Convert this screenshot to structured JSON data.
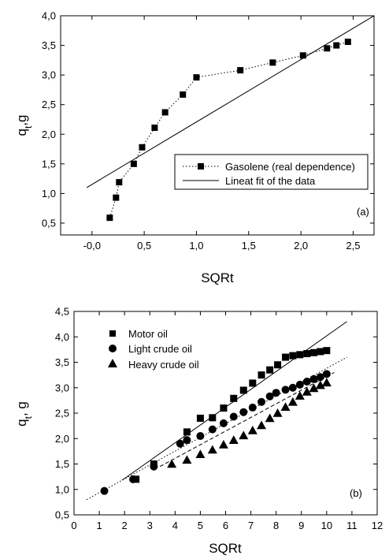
{
  "chart_data": [
    {
      "type": "scatter",
      "panel_label": "(a)",
      "xlabel": "SQRt",
      "ylabel_main": "q",
      "ylabel_sub": "t",
      "ylabel_tail": ",g",
      "xlim": [
        -0.3,
        2.7
      ],
      "ylim": [
        0.3,
        4.0
      ],
      "xticks": [
        -0.0,
        0.5,
        1.0,
        1.5,
        2.0,
        2.5
      ],
      "xtick_labels": [
        "-0,0",
        "0,5",
        "1,0",
        "1,5",
        "2,0",
        "2,5"
      ],
      "yticks": [
        0.5,
        1.0,
        1.5,
        2.0,
        2.5,
        3.0,
        3.5,
        4.0
      ],
      "ytick_labels": [
        "0,5",
        "1,0",
        "1,5",
        "2,0",
        "2,5",
        "3,0",
        "3,5",
        "4,0"
      ],
      "legend_position": "lower-right",
      "series": [
        {
          "name": "Gasolene (real dependence)",
          "marker": "square",
          "line": "dotted",
          "points": [
            [
              0.17,
              0.59
            ],
            [
              0.23,
              0.93
            ],
            [
              0.26,
              1.19
            ],
            [
              0.4,
              1.5
            ],
            [
              0.48,
              1.78
            ],
            [
              0.6,
              2.11
            ],
            [
              0.7,
              2.37
            ],
            [
              0.87,
              2.67
            ],
            [
              1.0,
              2.96
            ],
            [
              1.42,
              3.08
            ],
            [
              1.73,
              3.21
            ],
            [
              2.02,
              3.33
            ],
            [
              2.25,
              3.45
            ],
            [
              2.34,
              3.5
            ],
            [
              2.45,
              3.56
            ]
          ]
        },
        {
          "name": "Lineat fit of the data",
          "marker": "none",
          "line": "solid",
          "points": [
            [
              -0.05,
              1.1
            ],
            [
              2.7,
              4.0
            ]
          ]
        }
      ]
    },
    {
      "type": "scatter",
      "panel_label": "(b)",
      "xlabel": "SQRt",
      "ylabel_main": "q",
      "ylabel_sub": "t",
      "ylabel_tail": ", g",
      "xlim": [
        0,
        12
      ],
      "ylim": [
        0.5,
        4.5
      ],
      "xticks": [
        0,
        1,
        2,
        3,
        4,
        5,
        6,
        7,
        8,
        9,
        10,
        11,
        12
      ],
      "xtick_labels": [
        "0",
        "1",
        "2",
        "3",
        "4",
        "5",
        "6",
        "7",
        "8",
        "9",
        "10",
        "11",
        "12"
      ],
      "yticks": [
        0.5,
        1.0,
        1.5,
        2.0,
        2.5,
        3.0,
        3.5,
        4.0,
        4.5
      ],
      "ytick_labels": [
        "0,5",
        "1,0",
        "1,5",
        "2,0",
        "2,5",
        "3,0",
        "3,5",
        "4,0",
        "4,5"
      ],
      "legend_position": "top-left",
      "series": [
        {
          "name": "Motor oil",
          "marker": "square",
          "points": [
            [
              2.45,
              1.2
            ],
            [
              3.16,
              1.5
            ],
            [
              4.47,
              2.13
            ],
            [
              5.0,
              2.4
            ],
            [
              5.48,
              2.41
            ],
            [
              5.92,
              2.6
            ],
            [
              6.32,
              2.79
            ],
            [
              6.71,
              2.95
            ],
            [
              7.07,
              3.09
            ],
            [
              7.42,
              3.25
            ],
            [
              7.75,
              3.35
            ],
            [
              8.06,
              3.45
            ],
            [
              8.37,
              3.6
            ],
            [
              8.66,
              3.63
            ],
            [
              8.94,
              3.65
            ],
            [
              9.22,
              3.67
            ],
            [
              9.49,
              3.69
            ],
            [
              9.75,
              3.71
            ],
            [
              10.0,
              3.73
            ]
          ]
        },
        {
          "name": "Light crude oil",
          "marker": "circle",
          "points": [
            [
              1.2,
              0.97
            ],
            [
              2.34,
              1.2
            ],
            [
              3.16,
              1.45
            ],
            [
              4.2,
              1.9
            ],
            [
              4.47,
              1.97
            ],
            [
              5.0,
              2.05
            ],
            [
              5.48,
              2.18
            ],
            [
              5.92,
              2.3
            ],
            [
              6.32,
              2.43
            ],
            [
              6.71,
              2.52
            ],
            [
              7.07,
              2.61
            ],
            [
              7.42,
              2.72
            ],
            [
              7.75,
              2.83
            ],
            [
              8.0,
              2.9
            ],
            [
              8.37,
              2.96
            ],
            [
              8.66,
              3.0
            ],
            [
              8.94,
              3.06
            ],
            [
              9.22,
              3.12
            ],
            [
              9.49,
              3.17
            ],
            [
              9.75,
              3.21
            ],
            [
              10.0,
              3.27
            ]
          ]
        },
        {
          "name": "Heavy crude oil",
          "marker": "triangle",
          "points": [
            [
              3.87,
              1.5
            ],
            [
              4.47,
              1.58
            ],
            [
              5.0,
              1.69
            ],
            [
              5.48,
              1.78
            ],
            [
              5.92,
              1.88
            ],
            [
              6.32,
              1.97
            ],
            [
              6.71,
              2.06
            ],
            [
              7.07,
              2.16
            ],
            [
              7.42,
              2.26
            ],
            [
              7.75,
              2.4
            ],
            [
              8.06,
              2.5
            ],
            [
              8.37,
              2.62
            ],
            [
              8.66,
              2.72
            ],
            [
              8.94,
              2.84
            ],
            [
              9.22,
              2.92
            ],
            [
              9.49,
              2.99
            ],
            [
              9.75,
              3.05
            ],
            [
              10.0,
              3.1
            ]
          ]
        }
      ],
      "fit_lines": [
        {
          "style": "solid",
          "points": [
            [
              1.9,
              1.18
            ],
            [
              10.8,
              4.3
            ]
          ]
        },
        {
          "style": "dotted",
          "points": [
            [
              0.5,
              0.8
            ],
            [
              10.8,
              3.6
            ]
          ]
        },
        {
          "style": "dashed",
          "points": [
            [
              3.4,
              1.45
            ],
            [
              10.3,
              3.3
            ]
          ]
        }
      ]
    }
  ]
}
